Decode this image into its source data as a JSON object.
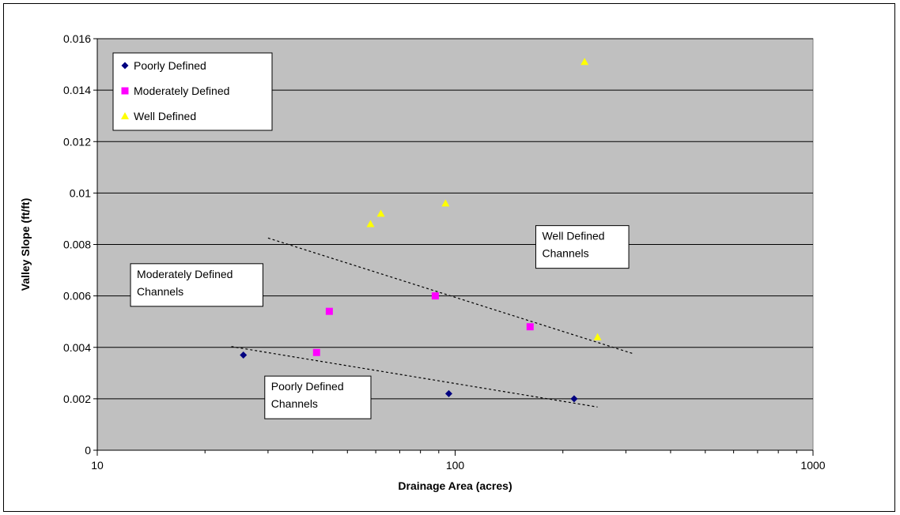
{
  "chart_data": {
    "type": "scatter",
    "xlabel": "Drainage Area (acres)",
    "ylabel": "Valley Slope (ft/ft)",
    "x_scale": "log",
    "xlim": [
      10,
      1000
    ],
    "ylim": [
      0,
      0.016
    ],
    "x_ticks": [
      10,
      100,
      1000
    ],
    "x_tick_labels": [
      "10",
      "100",
      "1000"
    ],
    "y_ticks": [
      0,
      0.002,
      0.004,
      0.006,
      0.008,
      0.01,
      0.012,
      0.014,
      0.016
    ],
    "y_tick_labels": [
      "0",
      "0.002",
      "0.004",
      "0.006",
      "0.008",
      "0.01",
      "0.012",
      "0.014",
      "0.016"
    ],
    "grid": "horizontal",
    "legend_position": "top-left",
    "plot_background": "#c0c0c0",
    "series": [
      {
        "name": "Poorly Defined",
        "marker": "diamond",
        "color": "#000080",
        "points": [
          [
            25.6,
            0.0037
          ],
          [
            96,
            0.0022
          ],
          [
            215,
            0.002
          ]
        ]
      },
      {
        "name": "Moderately Defined",
        "marker": "square",
        "color": "#ff00ff",
        "points": [
          [
            41,
            0.0038
          ],
          [
            44.5,
            0.0054
          ],
          [
            88,
            0.006
          ],
          [
            162,
            0.0048
          ]
        ]
      },
      {
        "name": "Well Defined",
        "marker": "triangle",
        "color": "#ffff00",
        "points": [
          [
            58,
            0.0088
          ],
          [
            62,
            0.0092
          ],
          [
            94,
            0.0096
          ],
          [
            230,
            0.0151
          ],
          [
            250,
            0.0044
          ]
        ]
      }
    ],
    "trendlines": [
      {
        "series": "Well Defined",
        "points": [
          [
            30,
            0.00825
          ],
          [
            315,
            0.00375
          ]
        ]
      },
      {
        "series": "Poorly Defined",
        "points": [
          [
            23.7,
            0.00403
          ],
          [
            250,
            0.00168
          ]
        ]
      }
    ],
    "annotations": [
      {
        "lines": [
          "Well Defined",
          "Channels"
        ],
        "x": 175,
        "y": 0.00818
      },
      {
        "lines": [
          "Moderately Defined",
          "Channels"
        ],
        "x": 12.9,
        "y": 0.0067
      },
      {
        "lines": [
          "Poorly Defined",
          "Channels"
        ],
        "x": 30.6,
        "y": 0.00233
      }
    ]
  }
}
